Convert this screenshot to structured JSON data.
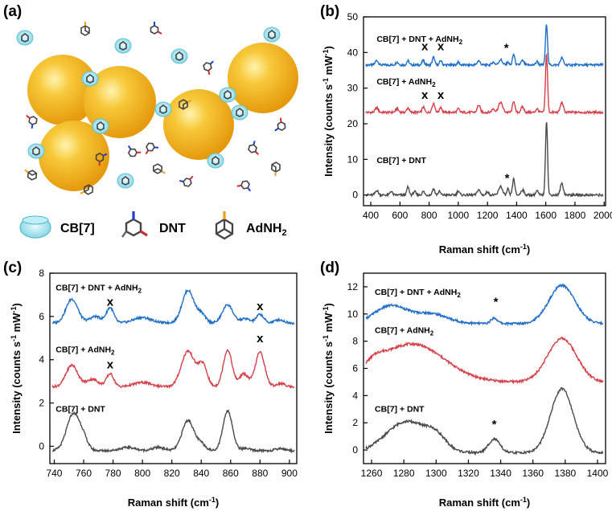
{
  "colors": {
    "blue": "#1f6fc8",
    "red": "#d6404a",
    "gray": "#4a4a4a",
    "gold": "#f2b21a",
    "cyan": "#7fd3e3"
  },
  "panel_a": {
    "label": "(a)",
    "legend": [
      {
        "icon": "cb7-icon",
        "label": "CB[7]"
      },
      {
        "icon": "dnt-icon",
        "label": "DNT"
      },
      {
        "icon": "adnh2-icon",
        "label": "AdNH",
        "sub": "2"
      }
    ]
  },
  "chart_data": [
    {
      "panel": "(b)",
      "type": "line",
      "xlabel": "Raman shift (cm",
      "xlabel_sup": "-1",
      "xlabel_end": ")",
      "ylabel": "Intensity (counts s",
      "ylabel_sup1": "-1",
      "ylabel_mid": " mW",
      "ylabel_sup2": "-1",
      "ylabel_end": ")",
      "xlim": [
        350,
        2010
      ],
      "ylim": [
        -3,
        50
      ],
      "xticks": [
        400,
        600,
        800,
        1000,
        1200,
        1400,
        1600,
        1800,
        2000
      ],
      "yticks": [
        0,
        10,
        20,
        30,
        40,
        50
      ],
      "series": [
        {
          "name": "CB[7] + DNT + AdNH",
          "sub": "2",
          "tail": "",
          "color": "blue",
          "baseline": 36.5,
          "label_x": 440,
          "label_y": 43,
          "peaks": [
            [
              441,
              1.3,
              10
            ],
            [
              580,
              0.8,
              10
            ],
            [
              655,
              1.2,
              8
            ],
            [
              760,
              1.3,
              8
            ],
            [
              830,
              2.2,
              8
            ],
            [
              880,
              1.2,
              8
            ],
            [
              1000,
              0.8,
              8
            ],
            [
              1140,
              1.2,
              10
            ],
            [
              1240,
              0.8,
              10
            ],
            [
              1290,
              1.5,
              12
            ],
            [
              1340,
              0.9,
              6
            ],
            [
              1380,
              3.0,
              8
            ],
            [
              1440,
              1.2,
              10
            ],
            [
              1540,
              1.0,
              8
            ],
            [
              1605,
              11.5,
              7
            ],
            [
              1710,
              2.0,
              10
            ]
          ]
        },
        {
          "name": "CB[7] + AdNH",
          "sub": "2",
          "tail": "",
          "color": "red",
          "baseline": 23.2,
          "label_x": 440,
          "label_y": 31,
          "peaks": [
            [
              441,
              1.3,
              10
            ],
            [
              580,
              1.0,
              10
            ],
            [
              655,
              1.3,
              8
            ],
            [
              760,
              1.5,
              8
            ],
            [
              830,
              2.5,
              10
            ],
            [
              880,
              1.5,
              8
            ],
            [
              1000,
              1.0,
              8
            ],
            [
              1140,
              2.0,
              10
            ],
            [
              1240,
              1.0,
              10
            ],
            [
              1290,
              2.8,
              14
            ],
            [
              1380,
              3.2,
              8
            ],
            [
              1440,
              1.5,
              10
            ],
            [
              1540,
              1.0,
              8
            ],
            [
              1605,
              16.5,
              7
            ],
            [
              1710,
              2.8,
              10
            ]
          ]
        },
        {
          "name": "CB[7] + DNT",
          "sub": "",
          "tail": "",
          "color": "gray",
          "baseline": 0,
          "label_x": 440,
          "label_y": 9,
          "peaks": [
            [
              441,
              1.3,
              10
            ],
            [
              540,
              1.1,
              8
            ],
            [
              655,
              2.2,
              8
            ],
            [
              700,
              1.0,
              8
            ],
            [
              760,
              1.0,
              8
            ],
            [
              830,
              1.8,
              8
            ],
            [
              870,
              1.0,
              8
            ],
            [
              1000,
              1.2,
              8
            ],
            [
              1140,
              1.5,
              10
            ],
            [
              1200,
              1.0,
              8
            ],
            [
              1290,
              2.5,
              12
            ],
            [
              1340,
              1.8,
              6
            ],
            [
              1380,
              4.5,
              8
            ],
            [
              1440,
              1.5,
              10
            ],
            [
              1540,
              1.2,
              8
            ],
            [
              1605,
              21,
              7
            ],
            [
              1710,
              3.3,
              10
            ]
          ]
        }
      ],
      "annotations": [
        {
          "text": "x",
          "x": 770,
          "y": 40.6
        },
        {
          "text": "x",
          "x": 880,
          "y": 40.6
        },
        {
          "text": "*",
          "x": 1330,
          "y": 40.2
        },
        {
          "text": "x",
          "x": 770,
          "y": 27.0
        },
        {
          "text": "x",
          "x": 880,
          "y": 27.0
        },
        {
          "text": "*",
          "x": 1335,
          "y": 3.6
        }
      ]
    },
    {
      "panel": "(c)",
      "type": "line",
      "xlabel": "Raman shift (cm",
      "xlabel_sup": "-1",
      "xlabel_end": ")",
      "ylabel": "Intensity (counts s",
      "ylabel_sup1": "-1",
      "ylabel_mid": " mW",
      "ylabel_sup2": "-1",
      "ylabel_end": ")",
      "xlim": [
        737,
        905
      ],
      "ylim": [
        -0.8,
        8
      ],
      "xticks": [
        740,
        760,
        780,
        800,
        820,
        840,
        860,
        880,
        900
      ],
      "yticks": [
        0,
        2,
        4,
        6,
        8
      ],
      "series": [
        {
          "name": "CB[7] + DNT + AdNH",
          "sub": "2",
          "tail": "",
          "color": "blue",
          "baseline": 5.7,
          "label_x": 741,
          "label_y": 7.2,
          "peaks": [
            [
              752,
              1.1,
              4
            ],
            [
              768,
              0.3,
              4
            ],
            [
              778,
              0.7,
              2.5
            ],
            [
              800,
              0.25,
              6
            ],
            [
              831,
              1.5,
              4
            ],
            [
              840,
              0.4,
              3
            ],
            [
              858,
              0.85,
              3.5
            ],
            [
              870,
              0.2,
              3
            ],
            [
              880,
              0.4,
              2.5
            ],
            [
              893,
              0.15,
              3
            ]
          ]
        },
        {
          "name": "CB[7] + AdNH",
          "sub": "2",
          "tail": "",
          "color": "red",
          "baseline": 2.75,
          "label_x": 741,
          "label_y": 4.35,
          "peaks": [
            [
              752,
              1.0,
              4
            ],
            [
              766,
              0.35,
              4
            ],
            [
              778,
              0.6,
              2.5
            ],
            [
              800,
              0.2,
              6
            ],
            [
              831,
              1.65,
              4.5
            ],
            [
              841,
              1.0,
              3
            ],
            [
              858,
              1.7,
              3
            ],
            [
              869,
              0.6,
              3
            ],
            [
              880,
              1.6,
              3.2
            ],
            [
              894,
              0.15,
              3
            ]
          ]
        },
        {
          "name": "CB[7] + DNT",
          "sub": "",
          "tail": "",
          "color": "gray",
          "baseline": -0.2,
          "label_x": 741,
          "label_y": 1.6,
          "peaks": [
            [
              753,
              1.7,
              4.5
            ],
            [
              760,
              0.4,
              3
            ],
            [
              790,
              0.15,
              5
            ],
            [
              811,
              0.15,
              4
            ],
            [
              831,
              1.4,
              4
            ],
            [
              840,
              0.3,
              3
            ],
            [
              858,
              1.85,
              3.2
            ],
            [
              870,
              0.1,
              3
            ],
            [
              894,
              0.1,
              3
            ]
          ]
        }
      ],
      "annotations": [
        {
          "text": "x",
          "x": 778,
          "y": 6.5
        },
        {
          "text": "x",
          "x": 880,
          "y": 6.3
        },
        {
          "text": "x",
          "x": 778,
          "y": 3.6
        },
        {
          "text": "x",
          "x": 880,
          "y": 4.8
        }
      ]
    },
    {
      "panel": "(d)",
      "type": "line",
      "xlabel": "Raman shift (cm",
      "xlabel_sup": "-1",
      "xlabel_end": ")",
      "ylabel": "Intensity (counts s",
      "ylabel_sup1": "-1",
      "ylabel_mid": " mW",
      "ylabel_sup2": "-1",
      "ylabel_end": ")",
      "xlim": [
        1255,
        1405
      ],
      "ylim": [
        -1,
        13
      ],
      "xticks": [
        1260,
        1280,
        1300,
        1320,
        1340,
        1360,
        1380,
        1400
      ],
      "yticks": [
        0,
        2,
        4,
        6,
        8,
        10,
        12
      ],
      "series": [
        {
          "name": "CB[7] + DNT + AdNH",
          "sub": "2",
          "tail": "",
          "color": "blue",
          "baseline": 9.3,
          "label_x": 1262,
          "label_y": 11.4,
          "peaks": [
            [
              1272,
              1.3,
              10
            ],
            [
              1297,
              0.7,
              10
            ],
            [
              1336,
              0.4,
              2
            ],
            [
              1378,
              2.8,
              8
            ]
          ]
        },
        {
          "name": "CB[7] + AdNH",
          "sub": "2",
          "tail": "",
          "color": "red",
          "baseline": 5.0,
          "label_x": 1262,
          "label_y": 8.6,
          "peaks": [
            [
              1285,
              2.8,
              20
            ],
            [
              1262,
              0.6,
              6
            ],
            [
              1378,
              3.2,
              9
            ]
          ]
        },
        {
          "name": "CB[7] + DNT",
          "sub": "",
          "tail": "",
          "color": "gray",
          "baseline": -0.2,
          "label_x": 1262,
          "label_y": 2.8,
          "peaks": [
            [
              1282,
              2.3,
              13
            ],
            [
              1300,
              0.8,
              6
            ],
            [
              1336,
              1.0,
              3.5
            ],
            [
              1378,
              4.7,
              7
            ]
          ]
        }
      ],
      "annotations": [
        {
          "text": "*",
          "x": 1337,
          "y": 10.6
        },
        {
          "text": "*",
          "x": 1336,
          "y": 1.6
        }
      ]
    }
  ]
}
